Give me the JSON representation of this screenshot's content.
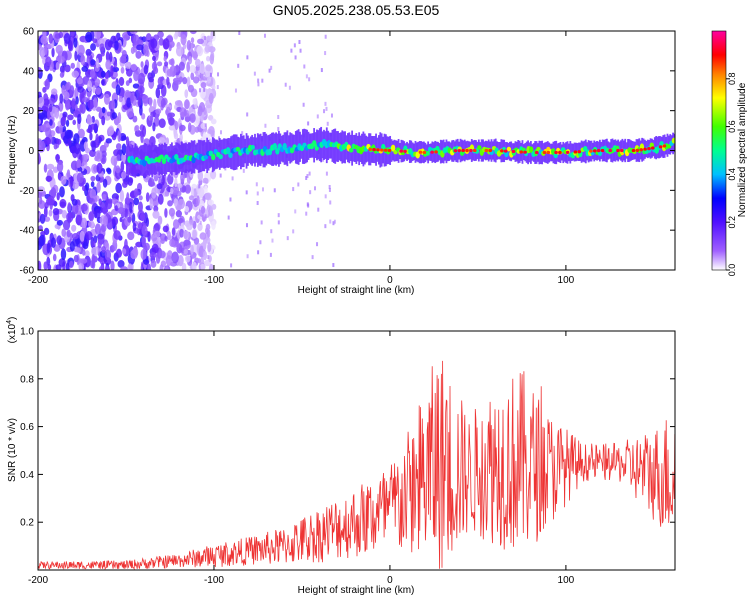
{
  "title": "GN05.2025.238.05.53.E05",
  "spectrogram": {
    "type": "heatmap",
    "xlabel": "Height of straight line (km)",
    "ylabel": "Frequency (Hz)",
    "xlim": [
      -200,
      162
    ],
    "ylim": [
      -60,
      60
    ],
    "xticks": [
      -200,
      -100,
      0,
      100
    ],
    "yticks": [
      -60,
      -40,
      -20,
      0,
      20,
      40,
      60
    ],
    "colorbar": {
      "label": "Normalized spectral amplitude",
      "range": [
        0,
        1
      ],
      "ticks": [
        0.0,
        0.2,
        0.4,
        0.6,
        0.8
      ],
      "colormap": [
        "#ffffff",
        "#8a2be2",
        "#0000ff",
        "#00ffff",
        "#00ff00",
        "#ffff00",
        "#ff8000",
        "#ff0000",
        "#ff00ff"
      ]
    },
    "ridge": [
      {
        "x": -140,
        "y": -5
      },
      {
        "x": -120,
        "y": -4
      },
      {
        "x": -100,
        "y": -2
      },
      {
        "x": -80,
        "y": 0
      },
      {
        "x": -60,
        "y": 1
      },
      {
        "x": -40,
        "y": 3
      },
      {
        "x": -20,
        "y": 1
      },
      {
        "x": 0,
        "y": 0
      },
      {
        "x": 20,
        "y": -1
      },
      {
        "x": 40,
        "y": 0
      },
      {
        "x": 60,
        "y": 0
      },
      {
        "x": 80,
        "y": -1
      },
      {
        "x": 100,
        "y": -1
      },
      {
        "x": 120,
        "y": 0
      },
      {
        "x": 140,
        "y": 0
      },
      {
        "x": 155,
        "y": 2
      },
      {
        "x": 162,
        "y": 4
      }
    ],
    "noise_region_xmax": -110
  },
  "snr": {
    "type": "line",
    "xlabel": "Height of straight line (km)",
    "ylabel": "SNR (10 * v/v)",
    "scale_label": "(x10",
    "scale_exp": "4",
    "scale_close": ")",
    "xlim": [
      -200,
      162
    ],
    "ylim": [
      0,
      1.0
    ],
    "xticks": [
      -200,
      -100,
      0,
      100
    ],
    "yticks": [
      0.2,
      0.4,
      0.6,
      0.8,
      1.0
    ],
    "color": "#ee3333",
    "envelope": [
      {
        "x": -200,
        "mean": 0.02,
        "amp": 0.015
      },
      {
        "x": -150,
        "mean": 0.02,
        "amp": 0.02
      },
      {
        "x": -120,
        "mean": 0.04,
        "amp": 0.03
      },
      {
        "x": -100,
        "mean": 0.06,
        "amp": 0.05
      },
      {
        "x": -80,
        "mean": 0.08,
        "amp": 0.06
      },
      {
        "x": -60,
        "mean": 0.1,
        "amp": 0.08
      },
      {
        "x": -40,
        "mean": 0.15,
        "amp": 0.12
      },
      {
        "x": -20,
        "mean": 0.2,
        "amp": 0.15
      },
      {
        "x": 0,
        "mean": 0.25,
        "amp": 0.2
      },
      {
        "x": 15,
        "mean": 0.35,
        "amp": 0.3
      },
      {
        "x": 28,
        "mean": 0.45,
        "amp": 0.5
      },
      {
        "x": 45,
        "mean": 0.4,
        "amp": 0.25
      },
      {
        "x": 60,
        "mean": 0.45,
        "amp": 0.35
      },
      {
        "x": 75,
        "mean": 0.45,
        "amp": 0.4
      },
      {
        "x": 90,
        "mean": 0.42,
        "amp": 0.25
      },
      {
        "x": 110,
        "mean": 0.45,
        "amp": 0.08
      },
      {
        "x": 130,
        "mean": 0.45,
        "amp": 0.08
      },
      {
        "x": 150,
        "mean": 0.4,
        "amp": 0.2
      },
      {
        "x": 162,
        "mean": 0.4,
        "amp": 0.3
      }
    ]
  }
}
